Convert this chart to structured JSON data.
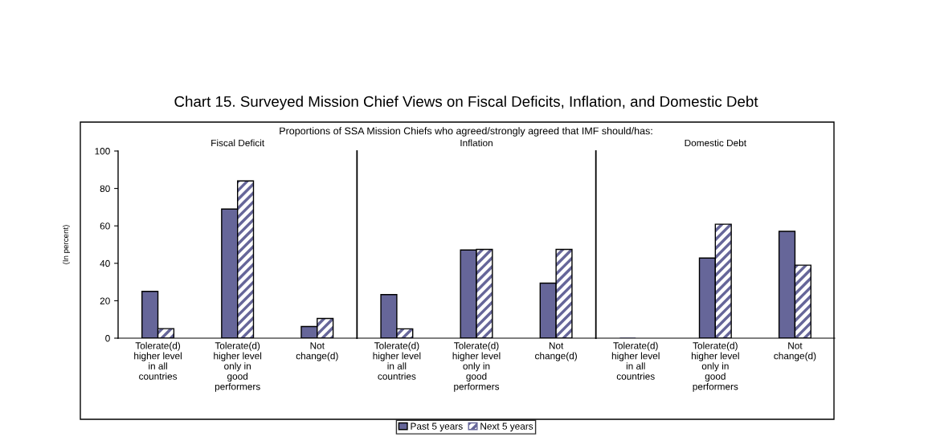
{
  "chart_data": [
    {
      "type": "bar",
      "title": "Chart 15. Surveyed Mission Chief Views on Fiscal Deficits, Inflation, and Domestic Debt",
      "subtitle": "Proportions of SSA Mission Chiefs who agreed/strongly agreed that IMF should/has:",
      "annotations": [
        "Fiscal Deficit"
      ],
      "ylabel": "(In percent)",
      "categories": [
        "Tolerate(d)\nhigher level\nin all\ncountries",
        "Tolerate(d)\nhigher level\nonly in\ngood\nperformers",
        "Not\nchange(d)"
      ],
      "series": [
        {
          "name": "Past 5 years",
          "color": "#666699",
          "values": [
            25,
            69,
            6.2
          ]
        },
        {
          "name": "Next 5 years",
          "color": "#666699",
          "values": [
            5.1,
            84,
            10.5
          ]
        }
      ],
      "ylim": [
        0,
        100
      ],
      "yticks": [
        0,
        20,
        40,
        60,
        80,
        100
      ],
      "legend": "bottom"
    },
    {
      "type": "bar",
      "annotations": [
        "Inflation"
      ],
      "categories": [
        "Tolerate(d)\nhigher level\nin all\ncountries",
        "Tolerate(d)\nhigher level\nonly in\ngood\nperformers",
        "Not\nchange(d)"
      ],
      "series": [
        {
          "color": "#666699",
          "values": [
            23.3,
            47.1,
            29.4
          ]
        },
        {
          "color": "#666699",
          "values": [
            5,
            47.4,
            47.4
          ]
        }
      ],
      "ylim": [
        0,
        100
      ],
      "tick_labels": "x"
    },
    {
      "type": "bar",
      "annotations": [
        "Domestic Debt"
      ],
      "categories": [
        "Tolerate(d)\nhigher level\nin all\ncountries",
        "Tolerate(d)\nhigher level\nonly in\ngood\nperformers",
        "Not\nchange(d)"
      ],
      "series": [
        {
          "color": "#666699",
          "values": [
            0,
            42.8,
            57.1
          ]
        },
        {
          "color": "#666699",
          "values": [
            0,
            60.9,
            39
          ]
        }
      ],
      "ylim": [
        0,
        100
      ],
      "tick_labels": "x"
    }
  ]
}
